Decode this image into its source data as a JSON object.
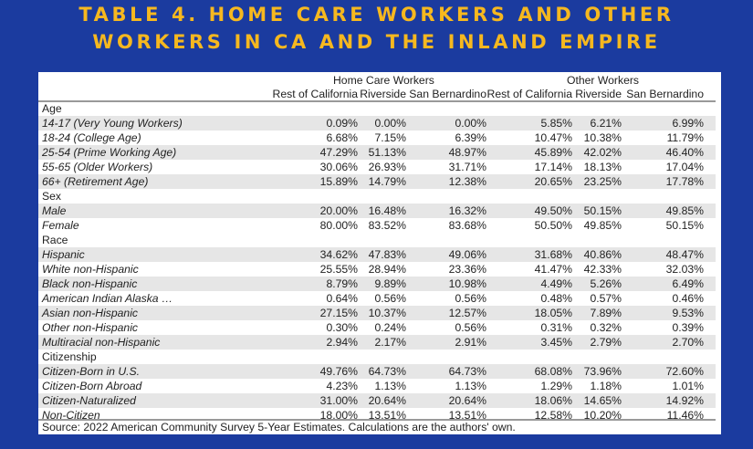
{
  "title": [
    "TABLE 4. HOME CARE WORKERS AND OTHER",
    "WORKERS IN CA AND THE INLAND EMPIRE"
  ],
  "group_headers": {
    "home_care": "Home  Care Workers",
    "other": "Other Workers"
  },
  "columns": [
    "Rest of California",
    "Riverside",
    "San Bernardino",
    "Rest of California",
    "Riverside",
    "San Bernardino"
  ],
  "rows": [
    {
      "label": "Age",
      "category": true
    },
    {
      "label": "14-17 (Very Young Workers)",
      "values": [
        "0.09%",
        "0.00%",
        "0.00%",
        "5.85%",
        "6.21%",
        "6.99%"
      ]
    },
    {
      "label": "18-24 (College Age)",
      "values": [
        "6.68%",
        "7.15%",
        "6.39%",
        "10.47%",
        "10.38%",
        "11.79%"
      ]
    },
    {
      "label": "25-54 (Prime Working Age)",
      "values": [
        "47.29%",
        "51.13%",
        "48.97%",
        "45.89%",
        "42.02%",
        "46.40%"
      ]
    },
    {
      "label": "55-65 (Older Workers)",
      "values": [
        "30.06%",
        "26.93%",
        "31.71%",
        "17.14%",
        "18.13%",
        "17.04%"
      ]
    },
    {
      "label": "66+ (Retirement Age)",
      "values": [
        "15.89%",
        "14.79%",
        "12.38%",
        "20.65%",
        "23.25%",
        "17.78%"
      ]
    },
    {
      "label": "Sex",
      "category": true
    },
    {
      "label": "Male",
      "values": [
        "20.00%",
        "16.48%",
        "16.32%",
        "49.50%",
        "50.15%",
        "49.85%"
      ]
    },
    {
      "label": "Female",
      "values": [
        "80.00%",
        "83.52%",
        "83.68%",
        "50.50%",
        "49.85%",
        "50.15%"
      ]
    },
    {
      "label": "Race",
      "category": true
    },
    {
      "label": "Hispanic",
      "values": [
        "34.62%",
        "47.83%",
        "49.06%",
        "31.68%",
        "40.86%",
        "48.47%"
      ]
    },
    {
      "label": "White non-Hispanic",
      "values": [
        "25.55%",
        "28.94%",
        "23.36%",
        "41.47%",
        "42.33%",
        "32.03%"
      ]
    },
    {
      "label": "Black non-Hispanic",
      "values": [
        "8.79%",
        "9.89%",
        "10.98%",
        "4.49%",
        "5.26%",
        "6.49%"
      ]
    },
    {
      "label": "American Indian Alaska …",
      "values": [
        "0.64%",
        "0.56%",
        "0.56%",
        "0.48%",
        "0.57%",
        "0.46%"
      ]
    },
    {
      "label": "Asian non-Hispanic",
      "values": [
        "27.15%",
        "10.37%",
        "12.57%",
        "18.05%",
        "7.89%",
        "9.53%"
      ]
    },
    {
      "label": "Other non-Hispanic",
      "values": [
        "0.30%",
        "0.24%",
        "0.56%",
        "0.31%",
        "0.32%",
        "0.39%"
      ]
    },
    {
      "label": "Multiracial non-Hispanic",
      "values": [
        "2.94%",
        "2.17%",
        "2.91%",
        "3.45%",
        "2.79%",
        "2.70%"
      ]
    },
    {
      "label": "Citizenship",
      "category": true
    },
    {
      "label": "Citizen-Born in U.S.",
      "values": [
        "49.76%",
        "64.73%",
        "64.73%",
        "68.08%",
        "73.96%",
        "72.60%"
      ]
    },
    {
      "label": "Citizen-Born Abroad",
      "values": [
        "4.23%",
        "1.13%",
        "1.13%",
        "1.29%",
        "1.18%",
        "1.01%"
      ]
    },
    {
      "label": "Citizen-Naturalized",
      "values": [
        "31.00%",
        "20.64%",
        "20.64%",
        "18.06%",
        "14.65%",
        "14.92%"
      ]
    },
    {
      "label": "Non-Citizen",
      "values": [
        "18.00%",
        "13.51%",
        "13.51%",
        "12.58%",
        "10.20%",
        "11.46%"
      ]
    }
  ],
  "source": "Source: 2022 American Community Survey 5-Year Estimates. Calculations are the authors' own.",
  "colors": {
    "background": "#1b3b9f",
    "title": "#f6b81f",
    "stripe": "#e6e6e6"
  }
}
